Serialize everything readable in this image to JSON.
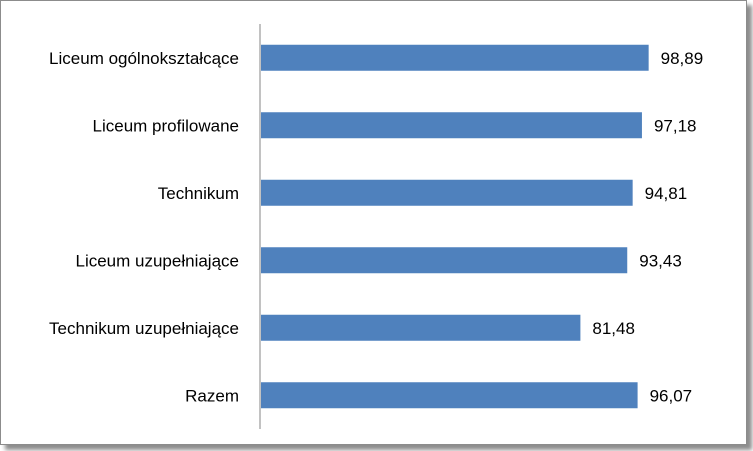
{
  "chart_data": {
    "type": "bar",
    "orientation": "horizontal",
    "categories": [
      "Liceum ogólnokształcące",
      "Liceum profilowane",
      "Technikum",
      "Liceum uzupełniające",
      "Technikum uzupełniające",
      "Razem"
    ],
    "values": [
      98.89,
      97.18,
      94.81,
      93.43,
      81.48,
      96.07
    ],
    "value_labels": [
      "98,89",
      "97,18",
      "94,81",
      "93,43",
      "81,48",
      "96,07"
    ],
    "xlim": [
      0,
      100
    ],
    "grid": false,
    "legend": "none",
    "bar_color": "#4f81bd"
  }
}
